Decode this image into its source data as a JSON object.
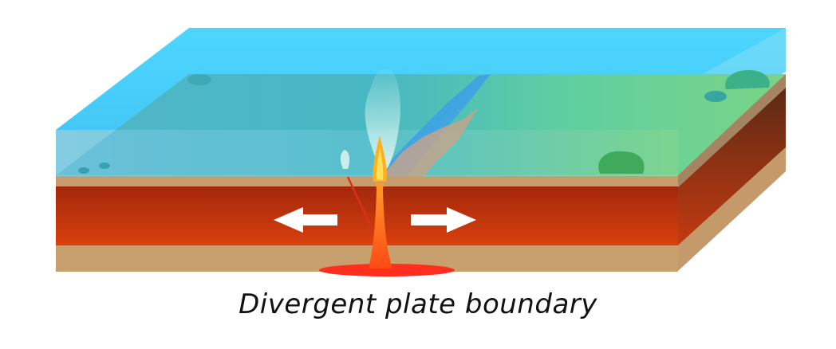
{
  "caption": "Divergent plate boundary",
  "colors": {
    "ocean_top": "#49d2fb",
    "ocean_front": "#5ec7ee",
    "seafloor": "#7ccf86",
    "crust_tan": "#c89d6b",
    "mantle_top": "#a52b0c",
    "mantle_bottom": "#d63c0e",
    "magma": "#ff6a1a",
    "lava_pool": "#ff2e1e",
    "flame": "#ffd23a",
    "rock": "#3fa95c",
    "arrow": "#ffffff"
  },
  "icons": {
    "left_arrow": "arrow-left-icon",
    "right_arrow": "arrow-right-icon"
  }
}
